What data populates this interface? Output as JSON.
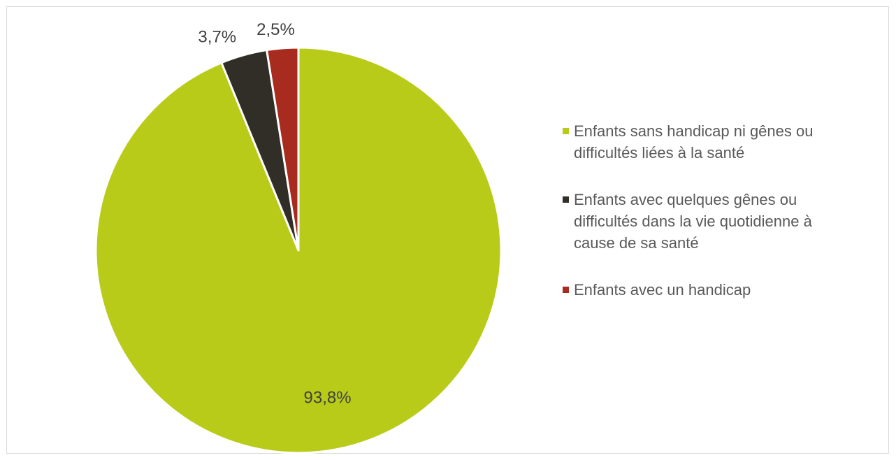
{
  "chart_data": {
    "type": "pie",
    "title": "",
    "start_angle": "12 o'clock",
    "direction": "clockwise",
    "legend_position": "right",
    "slices": [
      {
        "label": "Enfants sans handicap ni gênes ou difficultés liées à la santé",
        "value": 93.8,
        "value_label": "93,8%",
        "color": "#b8cb18"
      },
      {
        "label": "Enfants avec quelques gênes ou difficultés dans la vie quotidienne à cause de sa santé",
        "value": 3.7,
        "value_label": "3,7%",
        "color": "#312e27"
      },
      {
        "label": "Enfants avec un handicap",
        "value": 2.5,
        "value_label": "2,5%",
        "color": "#a82b20"
      }
    ]
  }
}
